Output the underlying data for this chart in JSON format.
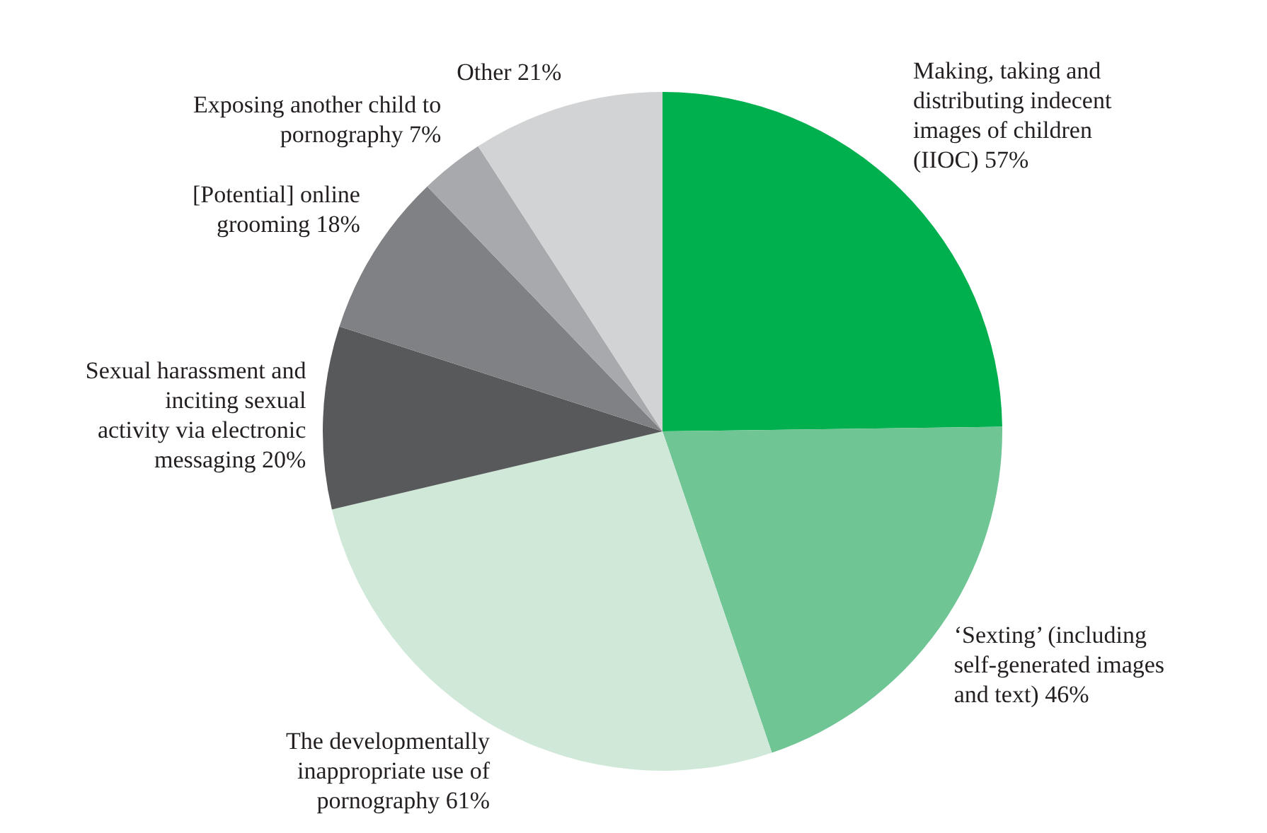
{
  "chart_data": {
    "type": "pie",
    "categories": [
      "Making, taking and distributing indecent images of children (IIOC)",
      "‘Sexting’ (including self-generated images and text)",
      "The developmentally inappropriate use of pornography",
      "Sexual harassment and inciting sexual activity via electronic messaging",
      "[Potential] online grooming",
      "Exposing another child to pornography",
      "Other"
    ],
    "values": [
      57,
      46,
      61,
      20,
      18,
      7,
      21
    ],
    "value_labels": [
      "57%",
      "46%",
      "61%",
      "20%",
      "18%",
      "7%",
      "21%"
    ],
    "colors": [
      "#00b04f",
      "#70c595",
      "#cfe8d8",
      "#58595b",
      "#808184",
      "#a7a9ac",
      "#d1d3d4"
    ]
  }
}
